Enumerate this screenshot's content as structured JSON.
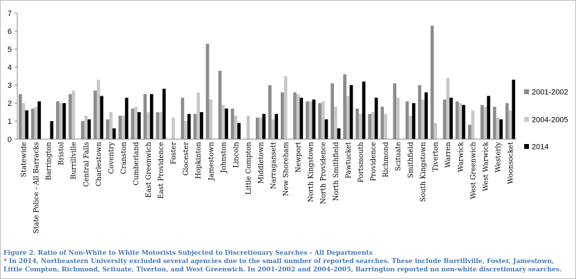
{
  "chart_data": {
    "type": "bar",
    "title": "",
    "xlabel": "",
    "ylabel": "",
    "ylim": [
      0,
      7
    ],
    "yticks": [
      0,
      1,
      2,
      3,
      4,
      5,
      6,
      7
    ],
    "grid": false,
    "legend_position": "right",
    "categories": [
      "Statewide",
      "State Police - All Barracks",
      "Barrington",
      "Bristol",
      "Burrillville",
      "Central Falls",
      "Charlestown",
      "Coventry",
      "Cranston",
      "Cumberland",
      "East Greenwich",
      "East Providence",
      "Foster",
      "Glocester",
      "Hopkinton",
      "Jamestown",
      "Johnston",
      "Lincoln",
      "Little Compton",
      "Middletown",
      "Narragansett",
      "New Shoreham",
      "Newport",
      "North Kingstown",
      "North Providence",
      "North Smithfield",
      "Pawtucket",
      "Portsmouth",
      "Providence",
      "Richmond",
      "Scituate",
      "Smithfield",
      "South Kingstown",
      "Tiverton",
      "Warren",
      "Warwick",
      "West Greenwich",
      "West Warwick",
      "Westerly",
      "Woonsocket"
    ],
    "series": [
      {
        "name": "2001-2002",
        "color": "#8c8c8c",
        "values": [
          2.5,
          1.7,
          0,
          2.1,
          2.5,
          1.0,
          2.7,
          1.1,
          1.3,
          1.7,
          2.5,
          1.5,
          0,
          2.3,
          1.4,
          5.3,
          3.8,
          1.7,
          0,
          1.2,
          3.0,
          2.6,
          2.6,
          2.1,
          2.0,
          3.1,
          3.6,
          1.7,
          1.4,
          1.8,
          3.1,
          2.1,
          3.0,
          6.3,
          2.2,
          2.1,
          0.8,
          1.9,
          1.8,
          2.0
        ]
      },
      {
        "name": "2004-2005",
        "color": "#c8c8c8",
        "values": [
          2.0,
          1.8,
          0,
          2.0,
          2.7,
          1.3,
          3.3,
          1.5,
          1.3,
          1.8,
          1.5,
          1.5,
          1.2,
          1.0,
          2.6,
          2.2,
          1.9,
          1.3,
          1.3,
          1.2,
          1.1,
          3.5,
          2.5,
          2.1,
          2.1,
          1.8,
          2.4,
          1.4,
          1.5,
          1.4,
          2.3,
          1.3,
          2.2,
          0.9,
          3.4,
          2.0,
          1.6,
          1.8,
          1.2,
          1.6
        ]
      },
      {
        "name": "2014",
        "color": "#000000",
        "values": [
          1.6,
          2.1,
          1.0,
          2.0,
          0,
          1.1,
          2.4,
          0.6,
          2.3,
          1.5,
          2.5,
          2.8,
          0,
          1.4,
          1.5,
          0,
          1.7,
          0.9,
          0,
          1.4,
          1.4,
          0,
          2.3,
          2.2,
          1.1,
          0.6,
          3.0,
          3.2,
          2.3,
          0,
          0,
          2.0,
          2.6,
          0,
          2.3,
          1.9,
          0,
          2.4,
          1.1,
          3.3
        ]
      }
    ]
  },
  "caption": {
    "line1": "Figure 2. Ratio of Non-White to White Motorists Subjected to Discretionary Searches - All Departments",
    "line2": "* In 2014, Northeastern University excluded several agencies due to the small number of reported searches. These include Burrillville, Foster, Jamestown,",
    "line3": "Little Compton, Richmond, Scituate, Tiverton, and West Greenwich. In 2001-2002 and 2004-2005, Barrington reported no non-white discretionary searches."
  }
}
